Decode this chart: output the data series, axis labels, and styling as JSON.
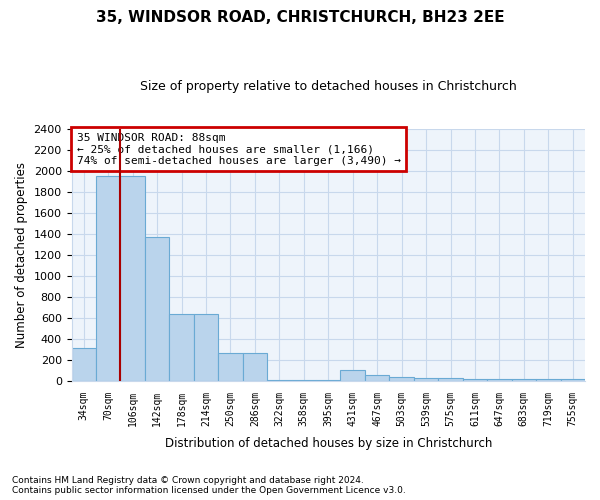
{
  "title": "35, WINDSOR ROAD, CHRISTCHURCH, BH23 2EE",
  "subtitle": "Size of property relative to detached houses in Christchurch",
  "xlabel": "Distribution of detached houses by size in Christchurch",
  "ylabel": "Number of detached properties",
  "categories": [
    "34sqm",
    "70sqm",
    "106sqm",
    "142sqm",
    "178sqm",
    "214sqm",
    "250sqm",
    "286sqm",
    "322sqm",
    "358sqm",
    "395sqm",
    "431sqm",
    "467sqm",
    "503sqm",
    "539sqm",
    "575sqm",
    "611sqm",
    "647sqm",
    "683sqm",
    "719sqm",
    "755sqm"
  ],
  "values": [
    310,
    1950,
    1950,
    1375,
    635,
    635,
    270,
    270,
    5,
    5,
    5,
    100,
    55,
    42,
    28,
    28,
    22,
    22,
    22,
    22,
    22
  ],
  "bar_color": "#bad4ec",
  "bar_edge_color": "#6aaad4",
  "vline_color": "#aa0000",
  "annotation_text": "35 WINDSOR ROAD: 88sqm\n← 25% of detached houses are smaller (1,166)\n74% of semi-detached houses are larger (3,490) →",
  "annotation_box_color": "#ffffff",
  "annotation_box_edge_color": "#cc0000",
  "ylim": [
    0,
    2400
  ],
  "yticks": [
    0,
    200,
    400,
    600,
    800,
    1000,
    1200,
    1400,
    1600,
    1800,
    2000,
    2200,
    2400
  ],
  "footer_line1": "Contains HM Land Registry data © Crown copyright and database right 2024.",
  "footer_line2": "Contains public sector information licensed under the Open Government Licence v3.0.",
  "bg_color": "#ffffff",
  "grid_color": "#c8d8ec",
  "title_fontsize": 11,
  "subtitle_fontsize": 9,
  "axis_bg_color": "#eef4fb"
}
